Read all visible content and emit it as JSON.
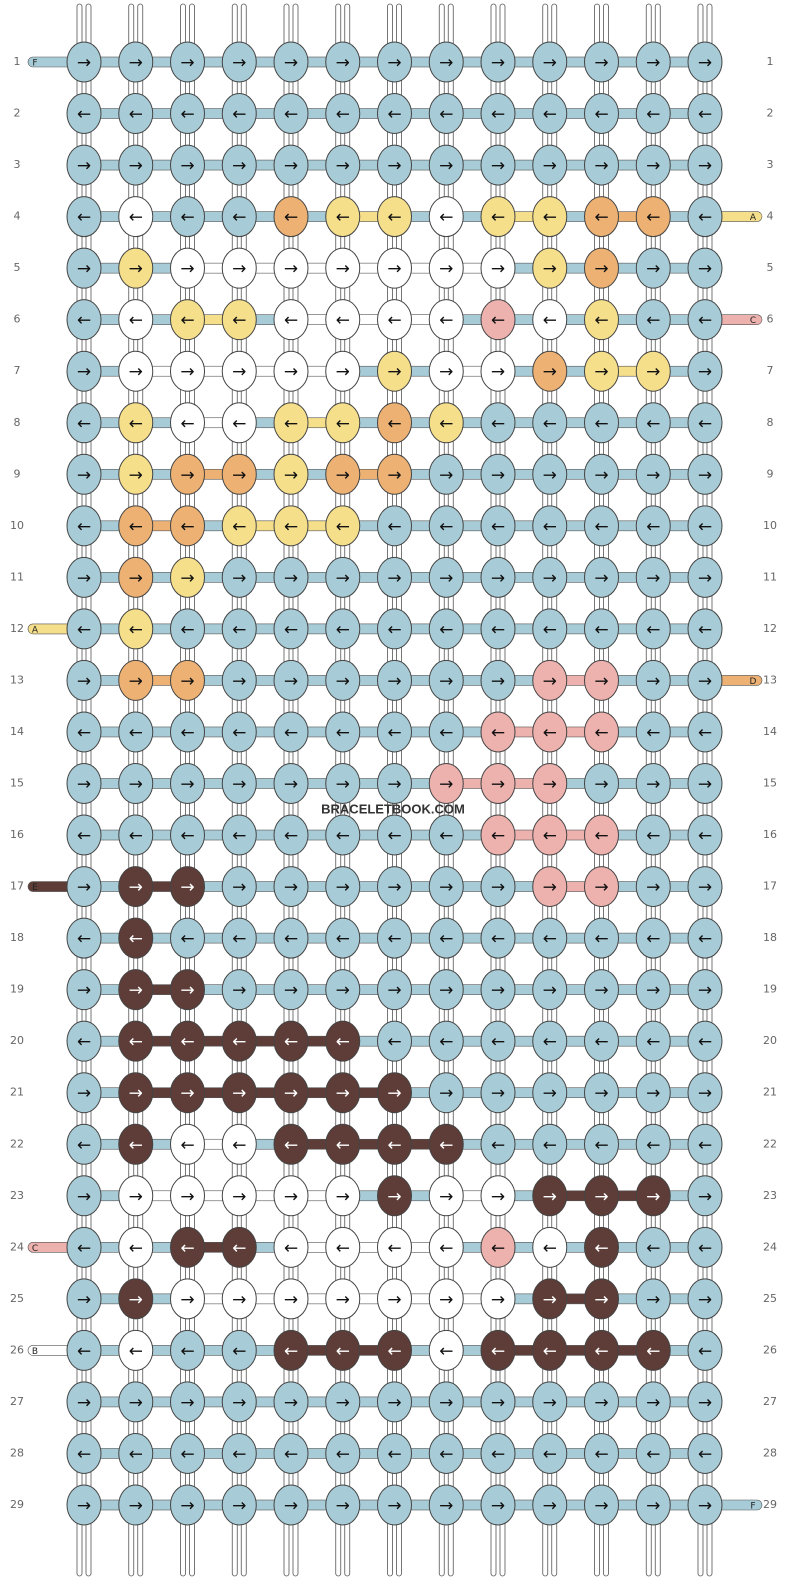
{
  "watermark": "BRACELETBOOK.COM",
  "palette": {
    "b": "#a8ccd7",
    "w": "#ffffff",
    "y": "#f6df8a",
    "o": "#edb173",
    "p": "#edb1ae",
    "d": "#5e3d38"
  },
  "rows": [
    {
      "label": "1",
      "colors": "bbbbbbbbbbbbb",
      "left": {
        "label": "F",
        "color": "b"
      },
      "arrows": [
        "→",
        "→",
        "→",
        "→",
        "→",
        "→",
        "→",
        "→",
        "→",
        "→",
        "→",
        "→",
        "→"
      ]
    },
    {
      "label": "2",
      "colors": "bbbbbbbbbbbbb",
      "arrows": [
        "←",
        "←",
        "←",
        "←",
        "←",
        "←",
        "←",
        "←",
        "←",
        "←",
        "←",
        "←",
        "←"
      ]
    },
    {
      "label": "3",
      "colors": "bbbbbbbbbbbbb",
      "arrows": [
        "→",
        "→",
        "→",
        "→",
        "→",
        "→",
        "→",
        "→",
        "→",
        "→",
        "→",
        "→",
        "→"
      ]
    },
    {
      "label": "4",
      "colors": "bwbboyywyyoob",
      "right": {
        "label": "A",
        "color": "y"
      },
      "arrows": [
        "←",
        "←",
        "←",
        "←",
        "←",
        "←",
        "←",
        "←",
        "←",
        "←",
        "←",
        "←",
        "←"
      ]
    },
    {
      "label": "5",
      "colors": "bywwwwwwwyobb",
      "arrows": [
        "→",
        "→",
        "→",
        "→",
        "→",
        "→",
        "→",
        "→",
        "→",
        "→",
        "→",
        "→",
        "→"
      ]
    },
    {
      "label": "6",
      "colors": "bwyywwwwpwybb",
      "right": {
        "label": "C",
        "color": "p"
      },
      "arrows": [
        "←",
        "←",
        "←",
        "←",
        "←",
        "←",
        "←",
        "←",
        "←",
        "←",
        "←",
        "←",
        "←"
      ]
    },
    {
      "label": "7",
      "colors": "bwwwwwywwoyyb",
      "arrows": [
        "→",
        "→",
        "→",
        "→",
        "→",
        "→",
        "→",
        "→",
        "→",
        "→",
        "→",
        "→",
        "→"
      ]
    },
    {
      "label": "8",
      "colors": "bywwyyoybbbbb",
      "arrows": [
        "←",
        "←",
        "←",
        "←",
        "←",
        "←",
        "←",
        "←",
        "←",
        "←",
        "←",
        "←",
        "←"
      ]
    },
    {
      "label": "9",
      "colors": "byooyoobbbbbb",
      "arrows": [
        "→",
        "→",
        "→",
        "→",
        "→",
        "→",
        "→",
        "→",
        "→",
        "→",
        "→",
        "→",
        "→"
      ]
    },
    {
      "label": "10",
      "colors": "booyyybbbbbbb",
      "arrows": [
        "←",
        "←",
        "←",
        "←",
        "←",
        "←",
        "←",
        "←",
        "←",
        "←",
        "←",
        "←",
        "←"
      ]
    },
    {
      "label": "11",
      "colors": "boybbbbbbbbbb",
      "arrows": [
        "→",
        "→",
        "→",
        "→",
        "→",
        "→",
        "→",
        "→",
        "→",
        "→",
        "→",
        "→",
        "→"
      ]
    },
    {
      "label": "12",
      "colors": "bybbbbbbbbbbb",
      "left": {
        "label": "A",
        "color": "y"
      },
      "arrows": [
        "←",
        "←",
        "←",
        "←",
        "←",
        "←",
        "←",
        "←",
        "←",
        "←",
        "←",
        "←",
        "←"
      ]
    },
    {
      "label": "13",
      "colors": "boobbbbbbppbb",
      "right": {
        "label": "D",
        "color": "o"
      },
      "arrows": [
        "→",
        "→",
        "→",
        "→",
        "→",
        "→",
        "→",
        "→",
        "→",
        "→",
        "→",
        "→",
        "→"
      ]
    },
    {
      "label": "14",
      "colors": "bbbbbbbbpppbb",
      "arrows": [
        "←",
        "←",
        "←",
        "←",
        "←",
        "←",
        "←",
        "←",
        "←",
        "←",
        "←",
        "←",
        "←"
      ]
    },
    {
      "label": "15",
      "colors": "bbbbbbbpppbbb",
      "arrows": [
        "→",
        "→",
        "→",
        "→",
        "→",
        "→",
        "→",
        "→",
        "→",
        "→",
        "→",
        "→",
        "→"
      ]
    },
    {
      "label": "16",
      "colors": "bbbbbbbbpppbb",
      "arrows": [
        "←",
        "←",
        "←",
        "←",
        "←",
        "←",
        "←",
        "←",
        "←",
        "←",
        "←",
        "←",
        "←"
      ]
    },
    {
      "label": "17",
      "colors": "bddbbbbbbppbb",
      "left": {
        "label": "E",
        "color": "d"
      },
      "arrows": [
        "→",
        "→",
        "→",
        "→",
        "→",
        "→",
        "→",
        "→",
        "→",
        "→",
        "→",
        "→",
        "→"
      ]
    },
    {
      "label": "18",
      "colors": "bdbbbbbbbbbbb",
      "arrows": [
        "←",
        "←",
        "←",
        "←",
        "←",
        "←",
        "←",
        "←",
        "←",
        "←",
        "←",
        "←",
        "←"
      ]
    },
    {
      "label": "19",
      "colors": "bddbbbbbbbbbb",
      "arrows": [
        "→",
        "→",
        "→",
        "→",
        "→",
        "→",
        "→",
        "→",
        "→",
        "→",
        "→",
        "→",
        "→"
      ]
    },
    {
      "label": "20",
      "colors": "bdddddbbbbbbb",
      "arrows": [
        "←",
        "←",
        "←",
        "←",
        "←",
        "←",
        "←",
        "←",
        "←",
        "←",
        "←",
        "←",
        "←"
      ]
    },
    {
      "label": "21",
      "colors": "bddddddbbbbbb",
      "arrows": [
        "→",
        "→",
        "→",
        "→",
        "→",
        "→",
        "→",
        "→",
        "→",
        "→",
        "→",
        "→",
        "→"
      ]
    },
    {
      "label": "22",
      "colors": "bdwwddddbbbbb",
      "arrows": [
        "←",
        "←",
        "←",
        "←",
        "←",
        "←",
        "←",
        "←",
        "←",
        "←",
        "←",
        "←",
        "←"
      ]
    },
    {
      "label": "23",
      "colors": "bwwwwwdwwdddb",
      "arrows": [
        "→",
        "→",
        "→",
        "→",
        "→",
        "→",
        "→",
        "→",
        "→",
        "→",
        "→",
        "→",
        "→"
      ]
    },
    {
      "label": "24",
      "colors": "bwddwwwwpwdbb",
      "left": {
        "label": "C",
        "color": "p"
      },
      "arrows": [
        "←",
        "←",
        "←",
        "←",
        "←",
        "←",
        "←",
        "←",
        "←",
        "←",
        "←",
        "←",
        "←"
      ]
    },
    {
      "label": "25",
      "colors": "bdwwwwwwwddbb",
      "arrows": [
        "→",
        "→",
        "→",
        "→",
        "→",
        "→",
        "→",
        "→",
        "→",
        "→",
        "→",
        "→",
        "→"
      ]
    },
    {
      "label": "26",
      "colors": "bwbbdddwddddb",
      "left": {
        "label": "B",
        "color": "w"
      },
      "arrows": [
        "←",
        "←",
        "←",
        "←",
        "←",
        "←",
        "←",
        "←",
        "←",
        "←",
        "←",
        "←",
        "←"
      ]
    },
    {
      "label": "27",
      "colors": "bbbbbbbbbbbbb",
      "arrows": [
        "→",
        "→",
        "→",
        "→",
        "→",
        "→",
        "→",
        "→",
        "→",
        "→",
        "→",
        "→",
        "→"
      ]
    },
    {
      "label": "28",
      "colors": "bbbbbbbbbbbbb",
      "arrows": [
        "←",
        "←",
        "←",
        "←",
        "←",
        "←",
        "←",
        "←",
        "←",
        "←",
        "←",
        "←",
        "←"
      ]
    },
    {
      "label": "29",
      "colors": "bbbbbbbbbbbbb",
      "right": {
        "label": "F",
        "color": "b"
      },
      "arrows": [
        "→",
        "→",
        "→",
        "→",
        "→",
        "→",
        "→",
        "→",
        "→",
        "→",
        "→",
        "→",
        "→"
      ]
    }
  ]
}
